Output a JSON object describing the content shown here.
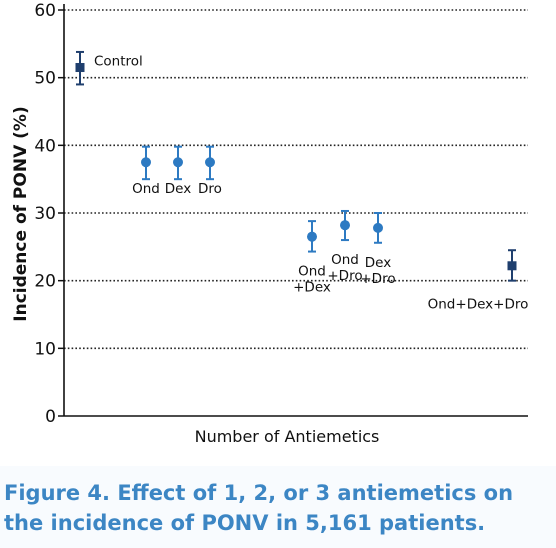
{
  "chart_data": {
    "type": "scatter",
    "xlabel": "Number of Antiemetics",
    "ylabel": "Incidence of PONV (%)",
    "ylim": [
      0,
      60
    ],
    "yticks": [
      0,
      10,
      20,
      30,
      40,
      50,
      60
    ],
    "grid": "horizontal dotted",
    "points": [
      {
        "group": 0,
        "label": "Control",
        "value": 51.5,
        "low": 49.0,
        "high": 53.8,
        "color": "#1f3f6e"
      },
      {
        "group": 1,
        "label": "Ond",
        "value": 37.5,
        "low": 35.0,
        "high": 39.8,
        "color": "#2d7ac2"
      },
      {
        "group": 1,
        "label": "Dex",
        "value": 37.5,
        "low": 35.0,
        "high": 39.8,
        "color": "#2d7ac2"
      },
      {
        "group": 1,
        "label": "Dro",
        "value": 37.5,
        "low": 35.0,
        "high": 39.8,
        "color": "#2d7ac2"
      },
      {
        "group": 2,
        "label": "Ond\n+Dex",
        "value": 26.5,
        "low": 24.3,
        "high": 28.8,
        "color": "#2d7ac2"
      },
      {
        "group": 2,
        "label": "Ond\n+Dro",
        "value": 28.2,
        "low": 26.0,
        "high": 30.3,
        "color": "#2d7ac2"
      },
      {
        "group": 2,
        "label": "Dex\n+Dro",
        "value": 27.8,
        "low": 25.6,
        "high": 30.0,
        "color": "#2d7ac2"
      },
      {
        "group": 3,
        "label": "Ond+Dex+Dro",
        "value": 22.2,
        "low": 20.0,
        "high": 24.5,
        "color": "#1f3f6e"
      }
    ]
  },
  "caption": {
    "text": "Figure 4. Effect of 1, 2, or 3 antiemetics on\nthe incidence of PONV in 5,161 patients."
  },
  "colors": {
    "caption_text": "#3c86c4",
    "caption_bg": "#f8fbfe",
    "control_marker": "#1f3f6e",
    "antiemetic_marker": "#2d7ac2"
  }
}
